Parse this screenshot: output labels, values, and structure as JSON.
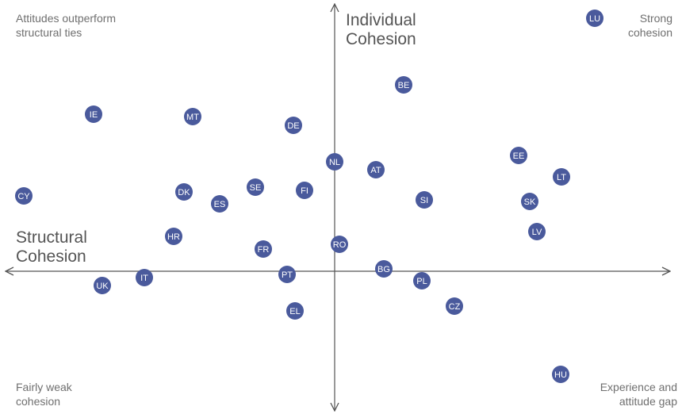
{
  "chart_data": {
    "type": "scatter",
    "xlabel": [
      "Structural",
      "Cohesion"
    ],
    "ylabel": [
      "Individual",
      "Cohesion"
    ],
    "quadrant_labels": {
      "top_left": [
        "Attitudes outperform",
        "structural ties"
      ],
      "top_right": [
        "Strong",
        "cohesion"
      ],
      "bottom_left": [
        "Fairly weak",
        "cohesion"
      ],
      "bottom_right": [
        "Experience and",
        "attitude gap"
      ]
    },
    "xlim": [
      -4.2,
      4.2
    ],
    "ylim": [
      -1.75,
      3.4
    ],
    "grid": false,
    "legend": "none",
    "point_color": "#4a5a9c",
    "point_text_color": "#ffffff",
    "axis_color": "#555555",
    "points": [
      {
        "label": "LU",
        "x": 3.28,
        "y": 3.19
      },
      {
        "label": "BE",
        "x": 0.87,
        "y": 2.35
      },
      {
        "label": "IE",
        "x": -3.04,
        "y": 1.98
      },
      {
        "label": "MT",
        "x": -1.79,
        "y": 1.95
      },
      {
        "label": "DE",
        "x": -0.52,
        "y": 1.84
      },
      {
        "label": "NL",
        "x": 0.0,
        "y": 1.38
      },
      {
        "label": "AT",
        "x": 0.52,
        "y": 1.28
      },
      {
        "label": "EE",
        "x": 2.32,
        "y": 1.46
      },
      {
        "label": "LT",
        "x": 2.86,
        "y": 1.19
      },
      {
        "label": "CY",
        "x": -3.92,
        "y": 0.95
      },
      {
        "label": "DK",
        "x": -1.9,
        "y": 1.0
      },
      {
        "label": "SE",
        "x": -1.0,
        "y": 1.06
      },
      {
        "label": "FI",
        "x": -0.38,
        "y": 1.02
      },
      {
        "label": "ES",
        "x": -1.45,
        "y": 0.85
      },
      {
        "label": "SI",
        "x": 1.13,
        "y": 0.9
      },
      {
        "label": "SK",
        "x": 2.46,
        "y": 0.88
      },
      {
        "label": "LV",
        "x": 2.55,
        "y": 0.5
      },
      {
        "label": "HR",
        "x": -2.03,
        "y": 0.44
      },
      {
        "label": "FR",
        "x": -0.9,
        "y": 0.28
      },
      {
        "label": "RO",
        "x": 0.06,
        "y": 0.34
      },
      {
        "label": "BG",
        "x": 0.62,
        "y": 0.03
      },
      {
        "label": "PT",
        "x": -0.6,
        "y": -0.04
      },
      {
        "label": "IT",
        "x": -2.4,
        "y": -0.08
      },
      {
        "label": "PL",
        "x": 1.1,
        "y": -0.12
      },
      {
        "label": "UK",
        "x": -2.93,
        "y": -0.18
      },
      {
        "label": "CZ",
        "x": 1.51,
        "y": -0.44
      },
      {
        "label": "EL",
        "x": -0.5,
        "y": -0.5
      },
      {
        "label": "HU",
        "x": 2.85,
        "y": -1.3
      }
    ]
  }
}
